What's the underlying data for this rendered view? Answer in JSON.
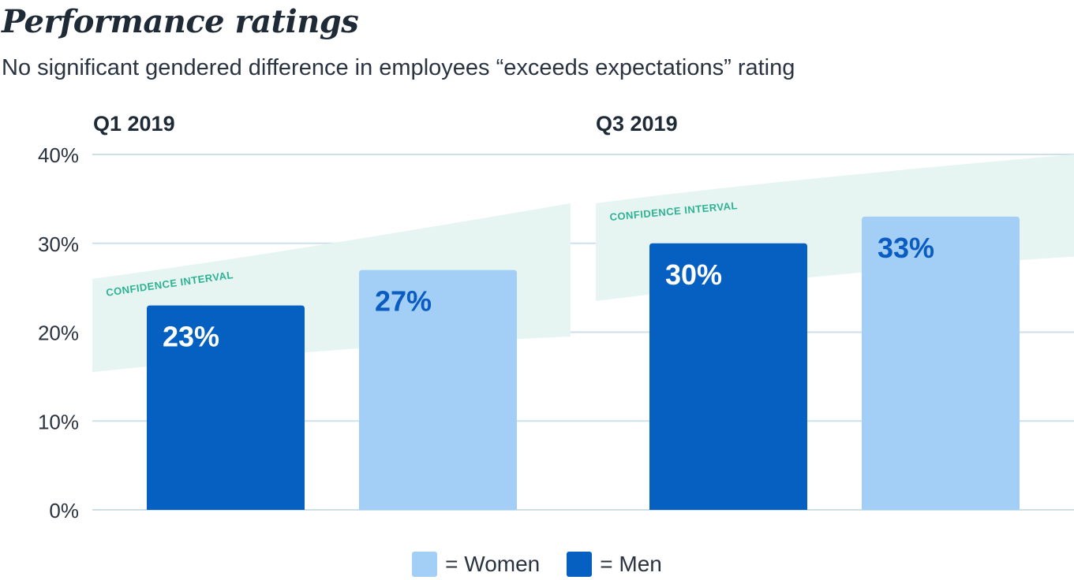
{
  "title": "Performance ratings",
  "subtitle": "No significant gendered difference in employees “exceeds expectations” rating",
  "colors": {
    "men": "#0560c2",
    "women": "#a3cef6",
    "confidence_band": "#e6f5f1",
    "grid": "#cde0ea",
    "label_on_men": "#ffffff",
    "label_on_women": "#0a5cc0"
  },
  "chart_data": {
    "type": "bar",
    "ylim": [
      0,
      40
    ],
    "yticks": [
      0,
      10,
      20,
      30,
      40
    ],
    "ytick_labels": [
      "0%",
      "10%",
      "20%",
      "30%",
      "40%"
    ],
    "grid": true,
    "groups": [
      {
        "label": "Q1 2019",
        "bars": [
          {
            "series": "Men",
            "value": 23,
            "label": "23%"
          },
          {
            "series": "Women",
            "value": 27,
            "label": "27%"
          }
        ],
        "confidence_interval": {
          "label": "CONFIDENCE INTERVAL",
          "lower": [
            15.5,
            19.5
          ],
          "upper": [
            26,
            34.5
          ]
        }
      },
      {
        "label": "Q3 2019",
        "bars": [
          {
            "series": "Men",
            "value": 30,
            "label": "30%"
          },
          {
            "series": "Women",
            "value": 33,
            "label": "33%"
          }
        ],
        "confidence_interval": {
          "label": "CONFIDENCE INTERVAL",
          "lower": [
            23.5,
            28.5
          ],
          "upper": [
            34.5,
            40
          ]
        }
      }
    ],
    "legend": {
      "placement": "bottom-center",
      "entries": [
        {
          "series": "Women",
          "label": "= Women"
        },
        {
          "series": "Men",
          "label": "= Men"
        }
      ]
    }
  }
}
